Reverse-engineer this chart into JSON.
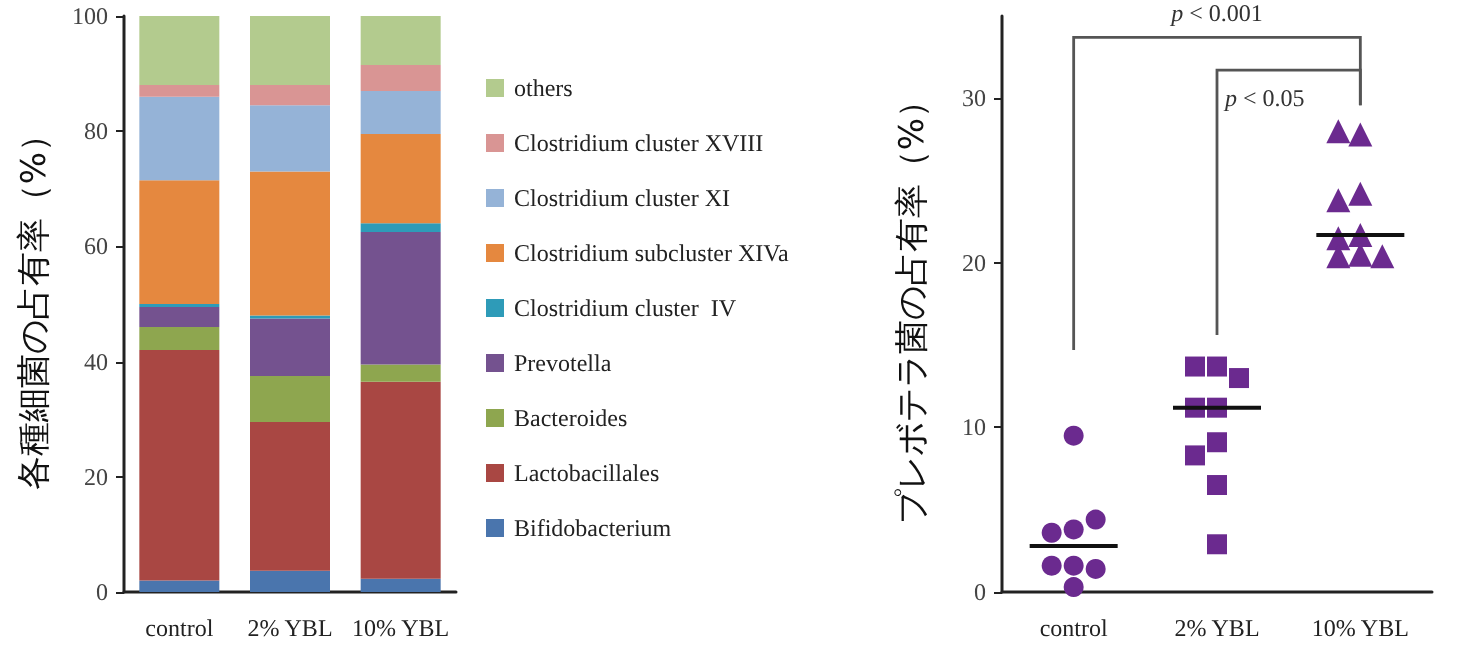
{
  "chart_data": [
    {
      "type": "bar",
      "stacked": true,
      "ylabel": "各種細菌の占有率（%）",
      "categories": [
        "control",
        "2% YBL",
        "10% YBL"
      ],
      "ylim": [
        0,
        100
      ],
      "yticks": [
        0,
        20,
        40,
        60,
        80,
        100
      ],
      "grid": false,
      "legend": "right",
      "series": [
        {
          "name": "Bifidobacterium",
          "color": "#4a75ad",
          "values": [
            2,
            3.7,
            2.3
          ]
        },
        {
          "name": "Lactobacillales",
          "color": "#a94743",
          "values": [
            40,
            25.8,
            34.2
          ]
        },
        {
          "name": "Bacteroides",
          "color": "#8ea64f",
          "values": [
            4,
            8,
            3
          ]
        },
        {
          "name": "Prevotella",
          "color": "#74528f",
          "values": [
            3.5,
            10,
            23
          ]
        },
        {
          "name": "Clostridium cluster  IV",
          "color": "#2e9bb8",
          "values": [
            0.5,
            0.5,
            1.5
          ]
        },
        {
          "name": "Clostridium subcluster XIVa",
          "color": "#e5883f",
          "values": [
            21.5,
            25,
            15.5
          ]
        },
        {
          "name": "Clostridium cluster XI",
          "color": "#95b3d7",
          "values": [
            14.5,
            11.5,
            7.5
          ]
        },
        {
          "name": "Clostridium cluster XVIII",
          "color": "#d99594",
          "values": [
            2,
            3.5,
            4.5
          ]
        },
        {
          "name": "others",
          "color": "#b3cb8e",
          "values": [
            12,
            12,
            8.5
          ]
        }
      ]
    },
    {
      "type": "scatter",
      "ylabel": "プレボテラ菌の占有率（%）",
      "categories": [
        "control",
        "2% YBL",
        "10% YBL"
      ],
      "ylim": [
        0,
        35
      ],
      "yticks": [
        0,
        10,
        20,
        30
      ],
      "grid": false,
      "legend": false,
      "annotations": [
        "p < 0.001",
        "p < 0.05"
      ],
      "series": [
        {
          "color": "#6b2a8f",
          "marker": "circle",
          "x": [
            "control",
            "control",
            "control",
            "control",
            "control",
            "control",
            "control",
            "control"
          ],
          "values": [
            9.5,
            3.8,
            3.6,
            4.4,
            1.6,
            1.6,
            1.4,
            0.3
          ]
        },
        {
          "color": "#6b2a8f",
          "marker": "square",
          "x": [
            "2% YBL",
            "2% YBL",
            "2% YBL",
            "2% YBL",
            "2% YBL",
            "2% YBL",
            "2% YBL",
            "2% YBL",
            "2% YBL"
          ],
          "values": [
            13.7,
            13.7,
            13,
            11.2,
            11.2,
            9.1,
            8.3,
            6.5,
            2.9
          ]
        },
        {
          "color": "#6b2a8f",
          "marker": "triangle",
          "x": [
            "10% YBL",
            "10% YBL",
            "10% YBL",
            "10% YBL",
            "10% YBL",
            "10% YBL",
            "10% YBL",
            "10% YBL",
            "10% YBL"
          ],
          "values": [
            27.8,
            28,
            24.2,
            23.8,
            21.7,
            21.5,
            20.5,
            20.4,
            20.4
          ]
        },
        {
          "type": "box",
          "color": "#111111",
          "boxes": [
            {
              "low": 2.8,
              "q1": 2.8,
              "median": 2.8,
              "q3": 2.8,
              "high": 2.8
            },
            {
              "low": 11.2,
              "q1": 11.2,
              "median": 11.2,
              "q3": 11.2,
              "high": 11.2
            },
            {
              "low": 21.7,
              "q1": 21.7,
              "median": 21.7,
              "q3": 21.7,
              "high": 21.7
            }
          ]
        }
      ]
    }
  ]
}
